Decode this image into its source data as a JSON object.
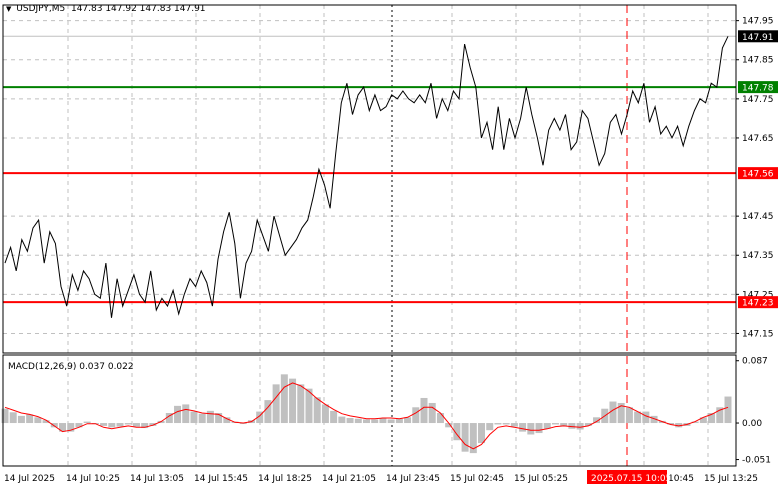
{
  "chart_header": {
    "symbol": "USDJPY,M5",
    "ohlc": "147.83 147.92 147.83 147.91"
  },
  "macd_header": "MACD(12,26,9) 0.037 0.022",
  "colors": {
    "price_line": "#000000",
    "resistance": "#008000",
    "support": "#ff0000",
    "grid": "#c0c0c0",
    "macd_hist": "#c0c0c0",
    "signal": "#ff0000",
    "marker_line": "#ff0000"
  },
  "chart_data": [
    {
      "type": "line",
      "title": "USDJPY,M5",
      "ylim": [
        147.1,
        147.99
      ],
      "y_ticks": [
        "147.95",
        "147.85",
        "147.75",
        "147.65",
        "147.45",
        "147.35",
        "147.25",
        "147.15"
      ],
      "x_ticks": [
        "14 Jul 2025",
        "14 Jul 10:25",
        "14 Jul 13:05",
        "14 Jul 15:45",
        "14 Jul 18:25",
        "14 Jul 21:05",
        "14 Jul 23:45",
        "15 Jul 02:45",
        "15 Jul 05:25",
        "15 Jul 10:45",
        "15 Jul 13:25"
      ],
      "highlight_x_label": "2025.07.15 10:05",
      "current_price_label": "147.91",
      "levels": [
        {
          "value": 147.78,
          "label": "147.78",
          "role": "resistance"
        },
        {
          "value": 147.56,
          "label": "147.56",
          "role": "support"
        },
        {
          "value": 147.23,
          "label": "147.23",
          "role": "support"
        }
      ],
      "series": [
        {
          "values": [
            147.33,
            147.37,
            147.31,
            147.39,
            147.36,
            147.42,
            147.44,
            147.33,
            147.41,
            147.38,
            147.27,
            147.22,
            147.3,
            147.26,
            147.31,
            147.29,
            147.25,
            147.24,
            147.33,
            147.19,
            147.29,
            147.22,
            147.26,
            147.3,
            147.25,
            147.23,
            147.31,
            147.21,
            147.24,
            147.22,
            147.26,
            147.2,
            147.25,
            147.29,
            147.27,
            147.31,
            147.28,
            147.22,
            147.34,
            147.41,
            147.46,
            147.38,
            147.24,
            147.33,
            147.36,
            147.44,
            147.4,
            147.36,
            147.45,
            147.4,
            147.35,
            147.37,
            147.39,
            147.42,
            147.44,
            147.5,
            147.57,
            147.53,
            147.47,
            147.61,
            147.74,
            147.79,
            147.71,
            147.76,
            147.78,
            147.72,
            147.76,
            147.72,
            147.73,
            147.76,
            147.75,
            147.77,
            147.75,
            147.74,
            147.76,
            147.74,
            147.79,
            147.7,
            147.75,
            147.72,
            147.77,
            147.75,
            147.89,
            147.83,
            147.78,
            147.65,
            147.69,
            147.62,
            147.73,
            147.62,
            147.7,
            147.65,
            147.7,
            147.78,
            147.71,
            147.65,
            147.58,
            147.67,
            147.7,
            147.67,
            147.71,
            147.62,
            147.64,
            147.72,
            147.7,
            147.64,
            147.58,
            147.61,
            147.69,
            147.71,
            147.66,
            147.71,
            147.77,
            147.74,
            147.79,
            147.69,
            147.73,
            147.66,
            147.68,
            147.65,
            147.68,
            147.63,
            147.68,
            147.72,
            147.75,
            147.74,
            147.79,
            147.78,
            147.88,
            147.91
          ]
        }
      ]
    },
    {
      "type": "bar",
      "title": "MACD(12,26,9)",
      "ylim": [
        -0.06,
        0.095
      ],
      "y_ticks": [
        "0.087",
        "0.00",
        "-0.051"
      ],
      "series": [
        {
          "name": "MACD",
          "values": [
            0.02,
            0.015,
            0.01,
            0.012,
            0.008,
            0.004,
            -0.006,
            -0.012,
            -0.012,
            -0.006,
            0.002,
            0.0,
            -0.004,
            -0.006,
            -0.005,
            -0.002,
            -0.005,
            -0.007,
            -0.004,
            0.003,
            0.014,
            0.024,
            0.026,
            0.016,
            0.013,
            0.017,
            0.014,
            0.008,
            0.002,
            -0.001,
            0.004,
            0.016,
            0.032,
            0.054,
            0.068,
            0.062,
            0.054,
            0.048,
            0.036,
            0.026,
            0.017,
            0.009,
            0.007,
            0.006,
            0.005,
            0.005,
            0.007,
            0.005,
            0.006,
            0.008,
            0.022,
            0.035,
            0.028,
            0.014,
            -0.006,
            -0.024,
            -0.04,
            -0.042,
            -0.028,
            -0.01,
            -0.002,
            -0.002,
            -0.005,
            -0.012,
            -0.016,
            -0.014,
            -0.008,
            -0.002,
            -0.004,
            -0.008,
            -0.009,
            -0.004,
            0.008,
            0.02,
            0.03,
            0.028,
            0.022,
            0.016,
            0.016,
            0.01,
            0.003,
            -0.002,
            -0.006,
            -0.004,
            0.002,
            0.008,
            0.014,
            0.022,
            0.037
          ]
        },
        {
          "name": "Signal",
          "values": [
            0.022,
            0.018,
            0.014,
            0.012,
            0.009,
            0.004,
            -0.004,
            -0.012,
            -0.01,
            -0.006,
            -0.001,
            -0.001,
            -0.006,
            -0.008,
            -0.006,
            -0.004,
            -0.006,
            -0.006,
            -0.003,
            0.002,
            0.01,
            0.016,
            0.019,
            0.017,
            0.014,
            0.013,
            0.012,
            0.006,
            0.001,
            0.0,
            0.002,
            0.01,
            0.022,
            0.036,
            0.05,
            0.056,
            0.052,
            0.044,
            0.034,
            0.026,
            0.019,
            0.013,
            0.01,
            0.008,
            0.006,
            0.006,
            0.007,
            0.007,
            0.006,
            0.008,
            0.014,
            0.022,
            0.022,
            0.014,
            0.0,
            -0.016,
            -0.03,
            -0.036,
            -0.03,
            -0.016,
            -0.006,
            -0.004,
            -0.006,
            -0.008,
            -0.01,
            -0.01,
            -0.008,
            -0.005,
            -0.004,
            -0.005,
            -0.006,
            -0.004,
            0.002,
            0.01,
            0.018,
            0.024,
            0.022,
            0.016,
            0.01,
            0.006,
            0.002,
            -0.002,
            -0.004,
            -0.002,
            0.002,
            0.008,
            0.012,
            0.018,
            0.022
          ]
        }
      ]
    }
  ]
}
